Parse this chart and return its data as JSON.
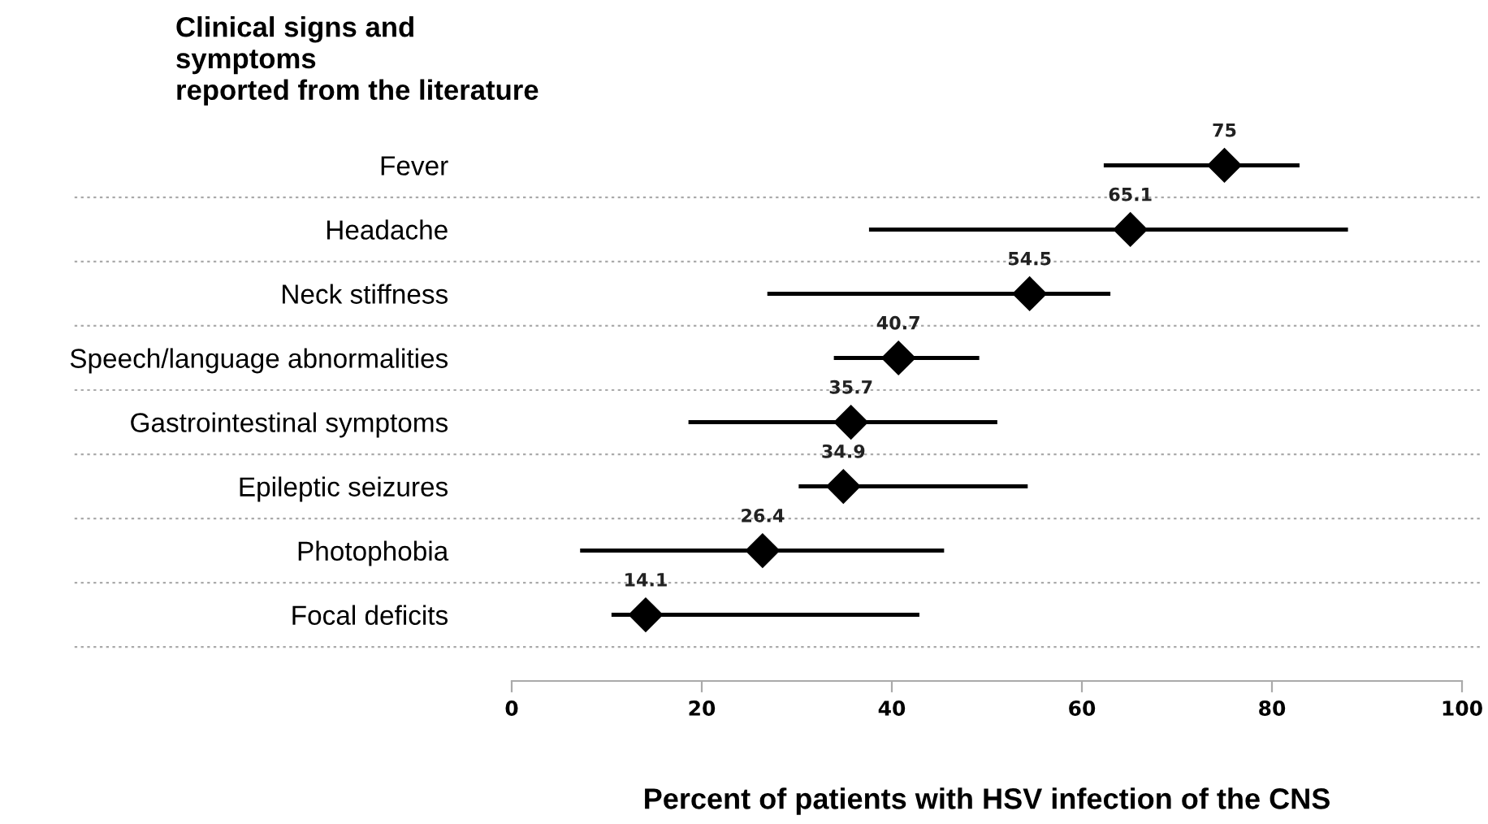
{
  "chart_data": {
    "type": "scatter",
    "orientation": "horizontal",
    "title": "Clinical signs and\nsymptoms\nreported from the literature",
    "xlabel": "Percent of patients with HSV infection of the CNS",
    "categories": [
      "Fever",
      "Headache",
      "Neck stiffness",
      "Speech/language abnormalities",
      "Gastrointestinal symptoms",
      "Epileptic seizures",
      "Photophobia",
      "Focal deficits"
    ],
    "series": [
      {
        "color": "#000000",
        "values": [
          75,
          65.1,
          54.5,
          40.7,
          35.7,
          34.9,
          26.4,
          14.1
        ],
        "errors": [
          [
            62.3,
            82.9
          ],
          [
            37.6,
            88.0
          ],
          [
            26.9,
            63.0
          ],
          [
            33.9,
            49.2
          ],
          [
            18.6,
            51.1
          ],
          [
            30.2,
            54.3
          ],
          [
            7.2,
            45.5
          ],
          [
            10.5,
            42.9
          ]
        ]
      }
    ],
    "xlim": [
      0,
      100
    ],
    "xticks": [
      0,
      20,
      40,
      60,
      80,
      100
    ],
    "marker": "diamond",
    "data_labels": true,
    "grid": "y"
  }
}
